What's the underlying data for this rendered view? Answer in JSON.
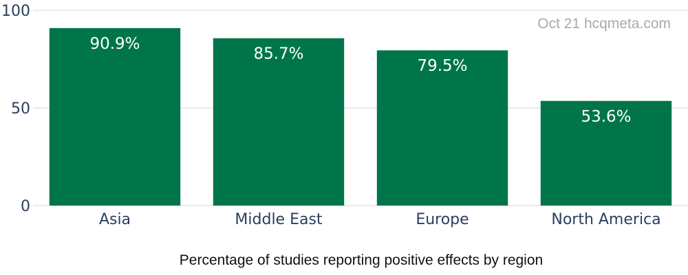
{
  "chart_data": {
    "type": "bar",
    "categories": [
      "Asia",
      "Middle East",
      "Europe",
      "North America"
    ],
    "values": [
      90.9,
      85.7,
      79.5,
      53.6
    ],
    "data_labels": [
      "90.9%",
      "85.7%",
      "79.5%",
      "53.6%"
    ],
    "y_ticks": [
      0,
      50,
      100
    ],
    "ylim": [
      0,
      100
    ],
    "grid": true,
    "bar_color": "#00754a",
    "annotation": "Oct 21 hcqmeta.com",
    "caption": "Percentage of studies reporting positive effects by region"
  },
  "colors": {
    "bar": "#00754a",
    "grid": "#e6ebf2",
    "tick_text": "#2a3f5f",
    "annotation": "#a9a9a9"
  }
}
